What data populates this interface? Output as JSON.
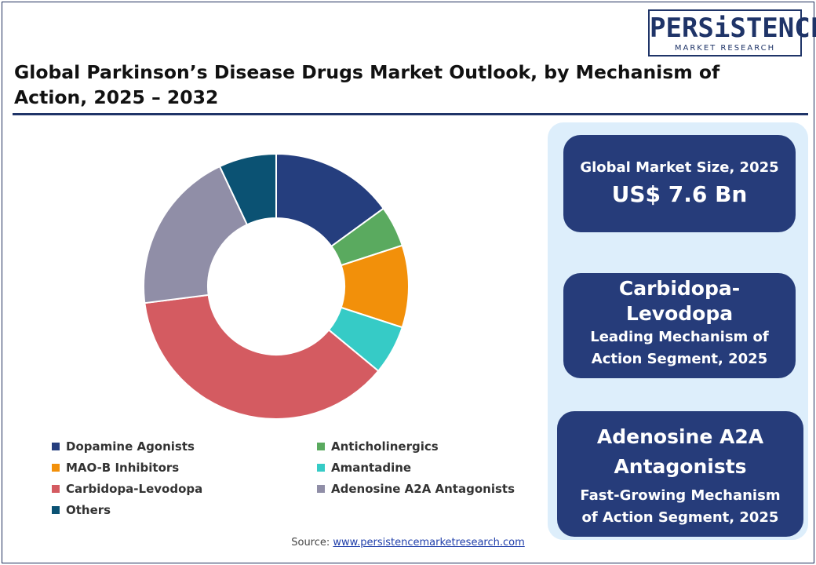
{
  "logo": {
    "main": "PERSiSTENCE",
    "sub": "MARKET RESEARCH"
  },
  "title": {
    "line1": "Global Parkinson’s Disease Drugs Market Outlook, by Mechanism of",
    "line2": "Action, 2025 – 2032"
  },
  "chart_data": {
    "type": "pie",
    "variant": "donut",
    "title": "Global Parkinson’s Disease Drugs Market Outlook, by Mechanism of Action, 2025 – 2032",
    "categories": [
      "Dopamine Agonists",
      "Anticholinergics",
      "MAO-B Inhibitors",
      "Amantadine",
      "Carbidopa-Levodopa",
      "Adenosine A2A Antagonists",
      "Others"
    ],
    "values": [
      15,
      5,
      10,
      6,
      37,
      20,
      7
    ],
    "colors": [
      "#253e7e",
      "#5aaa5f",
      "#f2900a",
      "#36cbc6",
      "#d45b61",
      "#908ea7",
      "#0b5273"
    ],
    "legend_position": "bottom"
  },
  "legend": {
    "items": [
      {
        "label": "Dopamine Agonists",
        "color": "#253e7e"
      },
      {
        "label": "Anticholinergics",
        "color": "#5aaa5f"
      },
      {
        "label": "MAO-B Inhibitors",
        "color": "#f2900a"
      },
      {
        "label": "Amantadine",
        "color": "#36cbc6"
      },
      {
        "label": "Carbidopa-Levodopa",
        "color": "#d45b61"
      },
      {
        "label": "Adenosine A2A Antagonists",
        "color": "#908ea7"
      },
      {
        "label": "Others",
        "color": "#0b5273"
      }
    ]
  },
  "cards": {
    "market_size": {
      "label": "Global Market Size, 2025",
      "value": "US$ 7.6 Bn"
    },
    "leading": {
      "head_line1": "Carbidopa-",
      "head_line2": "Levodopa",
      "sub_line1": "Leading Mechanism of",
      "sub_line2": "Action Segment, 2025"
    },
    "fastest": {
      "head_line1": "Adenosine A2A",
      "head_line2": "Antagonists",
      "sub_line1": "Fast-Growing Mechanism",
      "sub_line2": "of Action Segment, 2025"
    }
  },
  "source": {
    "prefix": "Source:",
    "link": "www.persistencemarketresearch.com"
  },
  "theme": {
    "navy": "#263c7a",
    "panel": "#ddeefb"
  }
}
